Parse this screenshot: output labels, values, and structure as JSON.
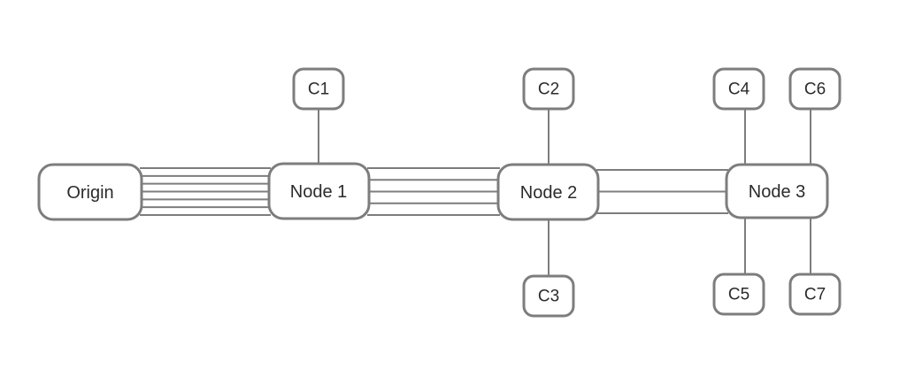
{
  "colors": {
    "stroke": "#7d7d7d",
    "node_fill": "#ffffff",
    "text": "#2b2b2b",
    "background": "#ffffff"
  },
  "nodes": {
    "origin": {
      "label": "Origin"
    },
    "node1": {
      "label": "Node 1"
    },
    "node2": {
      "label": "Node 2"
    },
    "node3": {
      "label": "Node 3"
    }
  },
  "children": {
    "c1": {
      "label": "C1",
      "parent": "Node 1"
    },
    "c2": {
      "label": "C2",
      "parent": "Node 2"
    },
    "c3": {
      "label": "C3",
      "parent": "Node 2"
    },
    "c4": {
      "label": "C4",
      "parent": "Node 3"
    },
    "c5": {
      "label": "C5",
      "parent": "Node 3"
    },
    "c6": {
      "label": "C6",
      "parent": "Node 3"
    },
    "c7": {
      "label": "C7",
      "parent": "Node 3"
    }
  },
  "links": [
    {
      "from": "Origin",
      "to": "Node 1",
      "line_count": 7
    },
    {
      "from": "Node 1",
      "to": "Node 2",
      "line_count": 5
    },
    {
      "from": "Node 2",
      "to": "Node 3",
      "line_count": 3
    }
  ]
}
